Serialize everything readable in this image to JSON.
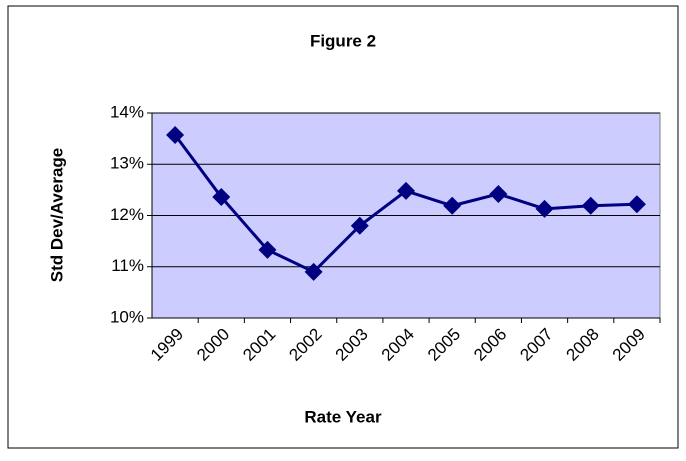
{
  "chart_data": {
    "type": "line",
    "title": "Figure 2",
    "y_label": "Std Dev/Average",
    "x_label": "Rate Year",
    "categories": [
      "1999",
      "2000",
      "2001",
      "2002",
      "2003",
      "2004",
      "2005",
      "2006",
      "2007",
      "2008",
      "2009"
    ],
    "series": [
      {
        "name": "Std Dev/Average",
        "color": "#000080",
        "values": [
          13.57,
          12.36,
          11.33,
          10.9,
          11.8,
          12.48,
          12.19,
          12.42,
          12.13,
          12.19,
          12.22
        ]
      }
    ],
    "ylim": [
      10,
      14
    ],
    "yticks": [
      {
        "value": 10,
        "label": "10%"
      },
      {
        "value": 11,
        "label": "11%"
      },
      {
        "value": 12,
        "label": "12%"
      },
      {
        "value": 13,
        "label": "13%"
      },
      {
        "value": 14,
        "label": "14%"
      }
    ],
    "grid": true,
    "plot_background": "#ccccff"
  }
}
